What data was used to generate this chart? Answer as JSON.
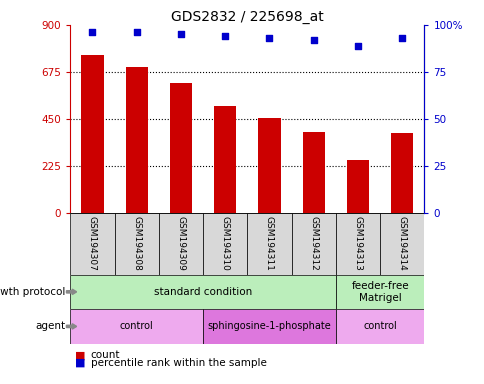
{
  "title": "GDS2832 / 225698_at",
  "samples": [
    "GSM194307",
    "GSM194308",
    "GSM194309",
    "GSM194310",
    "GSM194311",
    "GSM194312",
    "GSM194313",
    "GSM194314"
  ],
  "counts": [
    755,
    700,
    620,
    510,
    455,
    390,
    255,
    385
  ],
  "percentile_ranks": [
    96,
    96,
    95,
    94,
    93,
    92,
    89,
    93
  ],
  "ylim_left": [
    0,
    900
  ],
  "ylim_right": [
    0,
    100
  ],
  "yticks_left": [
    0,
    225,
    450,
    675,
    900
  ],
  "yticks_right": [
    0,
    25,
    50,
    75,
    100
  ],
  "bar_color": "#cc0000",
  "dot_color": "#0000cc",
  "gp_groups": [
    {
      "label": "standard condition",
      "start": 0,
      "end": 6,
      "color": "#bbeebb"
    },
    {
      "label": "feeder-free\nMatrigel",
      "start": 6,
      "end": 8,
      "color": "#bbeebb"
    }
  ],
  "agent_groups": [
    {
      "label": "control",
      "start": 0,
      "end": 3,
      "color": "#eeaaee"
    },
    {
      "label": "sphingosine-1-phosphate",
      "start": 3,
      "end": 6,
      "color": "#dd77dd"
    },
    {
      "label": "control",
      "start": 6,
      "end": 8,
      "color": "#eeaaee"
    }
  ],
  "legend_count_label": "count",
  "legend_percentile_label": "percentile rank within the sample",
  "bar_color_hex": "#cc0000",
  "dot_color_hex": "#0000cc",
  "row_label_growth": "growth protocol",
  "row_label_agent": "agent"
}
